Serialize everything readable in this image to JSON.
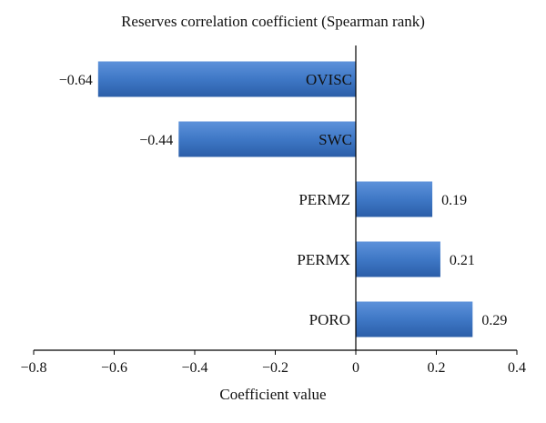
{
  "chart_data": {
    "type": "bar",
    "orientation": "horizontal",
    "title": "Reserves correlation coefficient (Spearman rank)",
    "xlabel": "Coefficient value",
    "ylabel": "",
    "categories": [
      "OVISC",
      "SWC",
      "PERMZ",
      "PERMX",
      "PORO"
    ],
    "values": [
      -0.64,
      -0.44,
      0.19,
      0.21,
      0.29
    ],
    "value_labels": [
      "−0.64",
      "−0.44",
      "0.19",
      "0.21",
      "0.29"
    ],
    "xlim": [
      -0.8,
      0.4
    ],
    "xticks": [
      -0.8,
      -0.6,
      -0.4,
      -0.2,
      0,
      0.2,
      0.4
    ],
    "xtick_labels": [
      "−0.8",
      "−0.6",
      "−0.4",
      "−0.2",
      "0",
      "0.2",
      "0.4"
    ],
    "grid": false,
    "legend": "none",
    "bar_color": "#3f78c6"
  }
}
